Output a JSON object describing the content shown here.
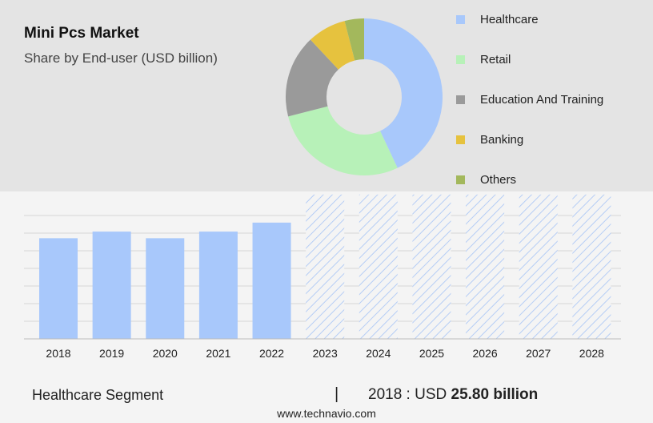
{
  "header": {
    "title": "Mini Pcs Market",
    "subtitle": "Share by End-user (USD billion)"
  },
  "colors": {
    "healthcare": "#a8c8fb",
    "retail": "#b7f1b8",
    "education": "#9a9a9a",
    "banking": "#e6c23e",
    "others": "#a3b85c",
    "forecast_hatch": "#b5cdf5"
  },
  "chart_data": [
    {
      "type": "pie",
      "donut": true,
      "slices": [
        {
          "label": "Healthcare",
          "value": 43,
          "color": "#a8c8fb"
        },
        {
          "label": "Retail",
          "value": 28,
          "color": "#b7f1b8"
        },
        {
          "label": "Education And Training",
          "value": 17,
          "color": "#9a9a9a"
        },
        {
          "label": "Banking",
          "value": 8,
          "color": "#e6c23e"
        },
        {
          "label": "Others",
          "value": 4,
          "color": "#a3b85c"
        }
      ],
      "legend": {
        "placement": "right"
      }
    },
    {
      "type": "bar",
      "categories": [
        "2018",
        "2019",
        "2020",
        "2021",
        "2022",
        "2023",
        "2024",
        "2025",
        "2026",
        "2027",
        "2028"
      ],
      "values": [
        25.8,
        27.5,
        25.8,
        27.5,
        29.8,
        37.0,
        37.0,
        37.0,
        37.0,
        37.0,
        37.0
      ],
      "forecast_from": "2023",
      "ylim": [
        0,
        40
      ],
      "grid": true
    }
  ],
  "footer": {
    "segment": "Healthcare Segment",
    "separator": "|",
    "year_label": "2018 : USD",
    "amount": "25.80 billion",
    "source": "www.technavio.com"
  }
}
